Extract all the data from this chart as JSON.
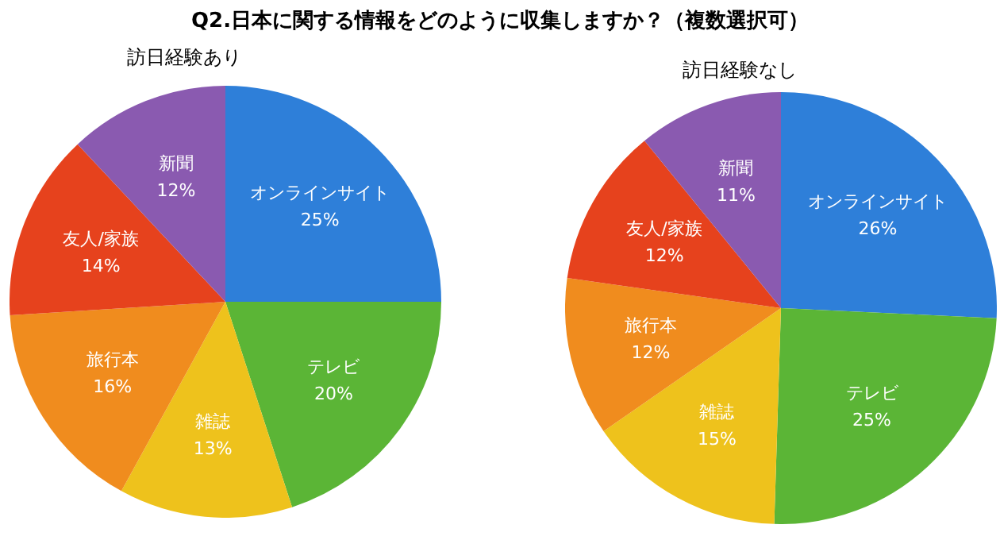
{
  "chart_data": [
    {
      "type": "pie",
      "title": "Q2.日本に関する情報をどのように収集しますか？（複数選択可）",
      "subtitle": "訪日経験あり",
      "categories": [
        "オンラインサイト",
        "テレビ",
        "雑誌",
        "旅行本",
        "友人/家族",
        "新聞"
      ],
      "values": [
        25,
        20,
        13,
        16,
        14,
        12
      ],
      "value_labels": [
        "25%",
        "20%",
        "13%",
        "16%",
        "14%",
        "12%"
      ],
      "colors": [
        "#2e7fd9",
        "#5bb536",
        "#eec21c",
        "#f08c1e",
        "#e6421d",
        "#8a5ab0"
      ],
      "legend": false
    },
    {
      "type": "pie",
      "subtitle": "訪日経験なし",
      "categories": [
        "オンラインサイト",
        "テレビ",
        "雑誌",
        "旅行本",
        "友人/家族",
        "新聞"
      ],
      "values": [
        26,
        25,
        15,
        12,
        12,
        11
      ],
      "value_labels": [
        "26%",
        "25%",
        "15%",
        "12%",
        "12%",
        "11%"
      ],
      "colors": [
        "#2e7fd9",
        "#5bb536",
        "#eec21c",
        "#f08c1e",
        "#e6421d",
        "#8a5ab0"
      ],
      "legend": false
    }
  ]
}
